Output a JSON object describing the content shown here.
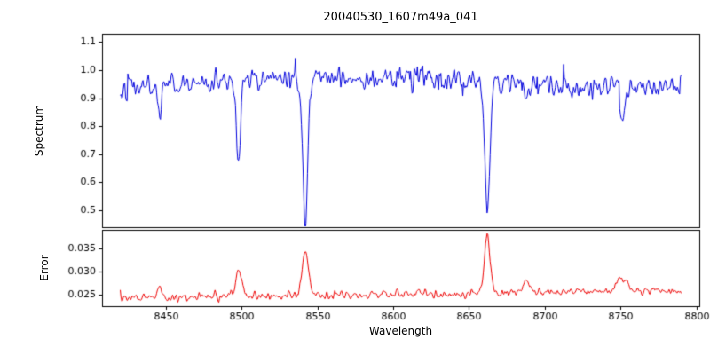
{
  "chart_data": {
    "type": "line",
    "title": "20040530_1607m49a_041",
    "xlabel": "Wavelength",
    "x_range": [
      8420,
      8790
    ],
    "x_step": 0.5,
    "xlim": [
      8408,
      8802
    ],
    "x_ticks": [
      8450,
      8500,
      8550,
      8600,
      8650,
      8700,
      8750,
      8800
    ],
    "noise_seed": 42,
    "grid": false,
    "legend": "none",
    "panels": [
      {
        "name": "spectrum",
        "ylabel": "Spectrum",
        "color": "#0000dd",
        "ylim": [
          0.44,
          1.13
        ],
        "y_ticks": [
          0.5,
          0.6,
          0.7,
          0.8,
          0.9,
          1.0,
          1.1
        ],
        "tick_decimals": 1,
        "continuum": {
          "base": 0.955,
          "amp": 0.02,
          "phase_x": 8480,
          "scale": 60
        },
        "noise_sigma": 0.018,
        "spike_prob": 0.025,
        "spike_amp": 0.045,
        "absorption_lines": [
          {
            "center": 8446.0,
            "depth": 0.1,
            "sigma": 1.0
          },
          {
            "center": 8498.0,
            "depth": 0.31,
            "sigma": 1.3
          },
          {
            "center": 8542.1,
            "depth": 0.5,
            "sigma": 1.6
          },
          {
            "center": 8662.1,
            "depth": 0.47,
            "sigma": 1.6
          },
          {
            "center": 8688.0,
            "depth": 0.06,
            "sigma": 1.0
          },
          {
            "center": 8751.0,
            "depth": 0.13,
            "sigma": 1.4
          }
        ]
      },
      {
        "name": "error",
        "ylabel": "Error",
        "color": "#ee0000",
        "ylim": [
          0.0225,
          0.039
        ],
        "y_ticks": [
          0.025,
          0.03,
          0.035
        ],
        "tick_decimals": 3,
        "baseline": {
          "start": 0.0243,
          "slope_per_angstrom": 4.5e-06
        },
        "noise_sigma": 0.00045,
        "peaks": [
          {
            "center": 8446.0,
            "amp": 0.0018,
            "sigma": 1.5
          },
          {
            "center": 8498.0,
            "amp": 0.0055,
            "sigma": 1.8
          },
          {
            "center": 8542.1,
            "amp": 0.0095,
            "sigma": 2.2
          },
          {
            "center": 8662.1,
            "amp": 0.0128,
            "sigma": 1.8
          },
          {
            "center": 8688.0,
            "amp": 0.0035,
            "sigma": 1.2
          },
          {
            "center": 8751.0,
            "amp": 0.0028,
            "sigma": 4.0
          }
        ]
      }
    ],
    "axes_color": "#000000",
    "background_color": "#ffffff"
  }
}
